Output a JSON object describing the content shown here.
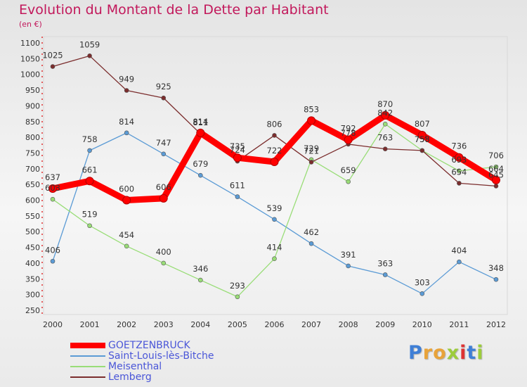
{
  "title": "Evolution du Montant de la Dette par Habitant",
  "subtitle": "(en €)",
  "logo": "Proxiti",
  "chart_data": {
    "type": "line",
    "title": "Evolution du Montant de la Dette par Habitant",
    "subtitle": "(en €)",
    "x": [
      "2000",
      "2001",
      "2002",
      "2003",
      "2004",
      "2005",
      "2006",
      "2007",
      "2008",
      "2009",
      "2010",
      "2011",
      "2012"
    ],
    "yticks": [
      250,
      300,
      350,
      400,
      450,
      500,
      550,
      600,
      650,
      700,
      750,
      800,
      850,
      900,
      950,
      1000,
      1050,
      1100
    ],
    "ylim": [
      250,
      1100
    ],
    "grid": false,
    "legend_position": "bottom-left",
    "series": [
      {
        "name": "GOETZENBRUCK",
        "color": "#ff0000",
        "values": [
          637,
          661,
          600,
          606,
          814,
          735,
          722,
          853,
          792,
          870,
          807,
          736,
          664
        ]
      },
      {
        "name": "Saint-Louis-lès-Bitche",
        "color": "#5b9bd5",
        "values": [
          406,
          758,
          814,
          747,
          679,
          611,
          539,
          462,
          391,
          363,
          303,
          404,
          348
        ]
      },
      {
        "name": "Meisenthal",
        "color": "#99dd77",
        "values": [
          603,
          519,
          454,
          400,
          346,
          293,
          414,
          729,
          659,
          842,
          758,
          693,
          706
        ]
      },
      {
        "name": "Lemberg",
        "color": "#7b2d2d",
        "values": [
          1025,
          1059,
          949,
          925,
          811,
          724,
          806,
          721,
          778,
          763,
          758,
          654,
          645
        ]
      }
    ]
  }
}
